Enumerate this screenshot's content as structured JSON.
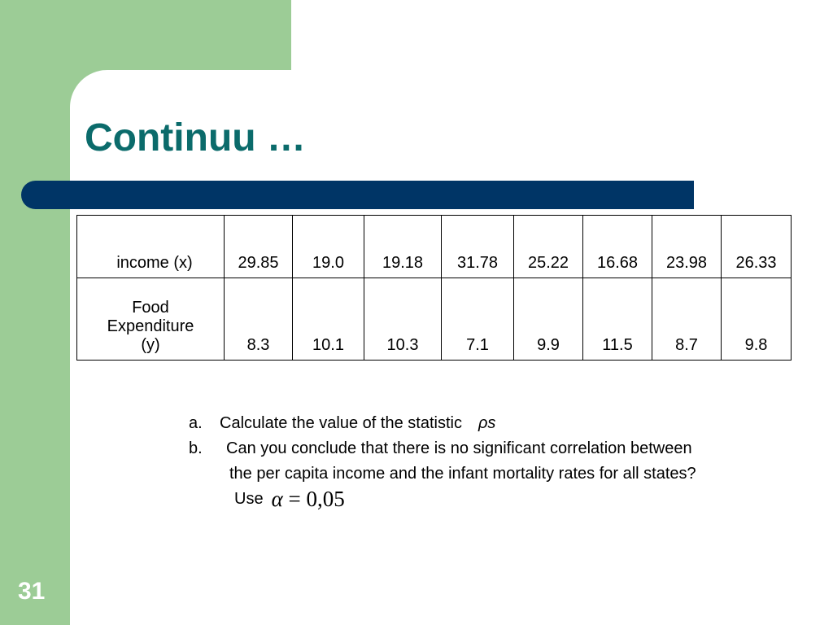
{
  "slide": {
    "title": "Continuu …",
    "page_number": "31"
  },
  "table": {
    "rows": [
      {
        "label": "income (x)",
        "values": [
          "29.85",
          "19.0",
          "19.18",
          "31.78",
          "25.22",
          "16.68",
          "23.98",
          "26.33"
        ]
      },
      {
        "label_lines": [
          "Food",
          "Expenditure",
          "(y)"
        ],
        "values": [
          "8.3",
          "10.1",
          "10.3",
          "7.1",
          "9.9",
          "11.5",
          "8.7",
          "9.8"
        ]
      }
    ]
  },
  "questions": {
    "a": {
      "letter": "a.",
      "text": "Calculate the value of the statistic",
      "symbol": "ρs"
    },
    "b": {
      "letter": "b.",
      "line1": "Can you conclude that there is no significant correlation between",
      "line2": "the per capita income and the infant mortality rates for all states?",
      "use_label": "Use",
      "alpha_symbol": "α",
      "alpha_expression": " = 0,05"
    }
  },
  "colors": {
    "sidebar_green": "#9ccc96",
    "title_teal": "#0b6b6b",
    "divider_navy": "#003566"
  }
}
